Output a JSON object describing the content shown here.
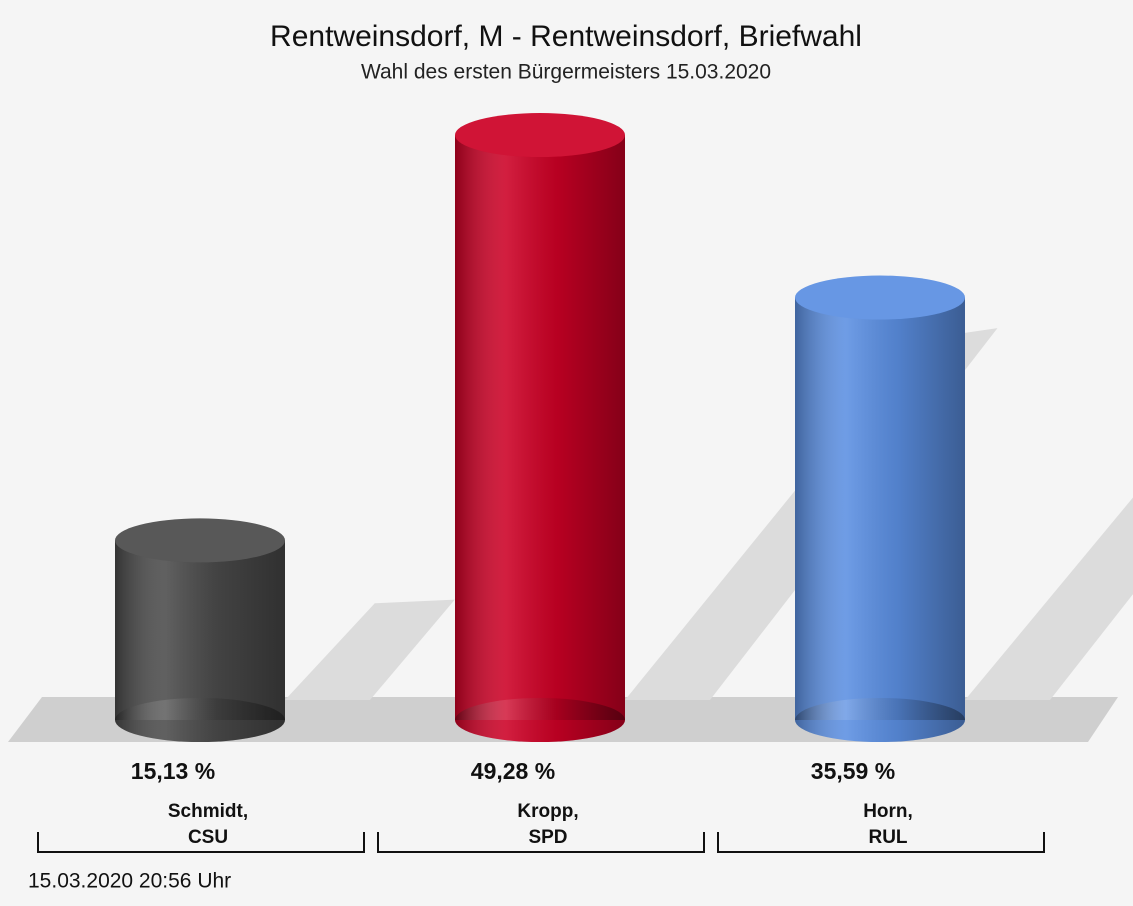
{
  "chart_data": {
    "type": "bar",
    "title": "Rentweinsdorf, M - Rentweinsdorf, Briefwahl",
    "subtitle": "Wahl des ersten Bürgermeisters 15.03.2020",
    "categories": [
      "Schmidt,\nCSU",
      "Kropp,\nSPD",
      "Horn,\nRUL"
    ],
    "values": [
      15.13,
      49.28,
      35.59
    ],
    "value_labels": [
      "15,13 %",
      "49,28 %",
      "35,59 %"
    ],
    "colors": [
      "#4a4a4a",
      "#cc0025",
      "#5b8fe2"
    ],
    "footer": "15.03.2020 20:56 Uhr"
  }
}
